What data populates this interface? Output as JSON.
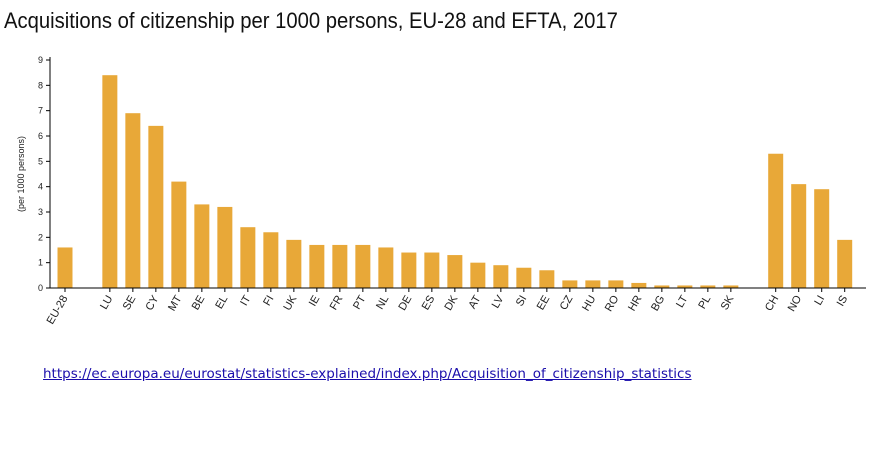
{
  "title": "Acquisitions of citizenship per 1000 persons, EU-28 and EFTA, 2017",
  "source_link": "https://ec.europa.eu/eurostat/statistics-explained/index.php/Acquisition_of_citizenship_statistics",
  "colors": {
    "bar": "#E8A838",
    "axis": "#000000"
  },
  "chart_data": {
    "type": "bar",
    "title": "Acquisitions of citizenship per 1000 persons, EU-28 and EFTA, 2017",
    "ylabel": "(per 1000 persons)",
    "xlabel": "",
    "ylim": [
      0,
      9
    ],
    "yticks": [
      0,
      1,
      2,
      3,
      4,
      5,
      6,
      7,
      8,
      9
    ],
    "grid": false,
    "legend": "none",
    "categories": [
      "EU-28",
      "LU",
      "SE",
      "CY",
      "MT",
      "BE",
      "EL",
      "IT",
      "FI",
      "UK",
      "IE",
      "FR",
      "PT",
      "NL",
      "DE",
      "ES",
      "DK",
      "AT",
      "LV",
      "SI",
      "EE",
      "CZ",
      "HU",
      "RO",
      "HR",
      "BG",
      "LT",
      "PL",
      "SK",
      "CH",
      "NO",
      "LI",
      "IS"
    ],
    "values": [
      1.6,
      8.4,
      6.9,
      6.4,
      4.2,
      3.3,
      3.2,
      2.4,
      2.2,
      1.9,
      1.7,
      1.7,
      1.7,
      1.6,
      1.4,
      1.4,
      1.3,
      1.0,
      0.9,
      0.8,
      0.7,
      0.3,
      0.3,
      0.3,
      0.2,
      0.1,
      0.1,
      0.1,
      0.1,
      5.3,
      4.1,
      3.9,
      1.9
    ],
    "group_breaks_after": [
      "EU-28",
      "SK"
    ]
  }
}
